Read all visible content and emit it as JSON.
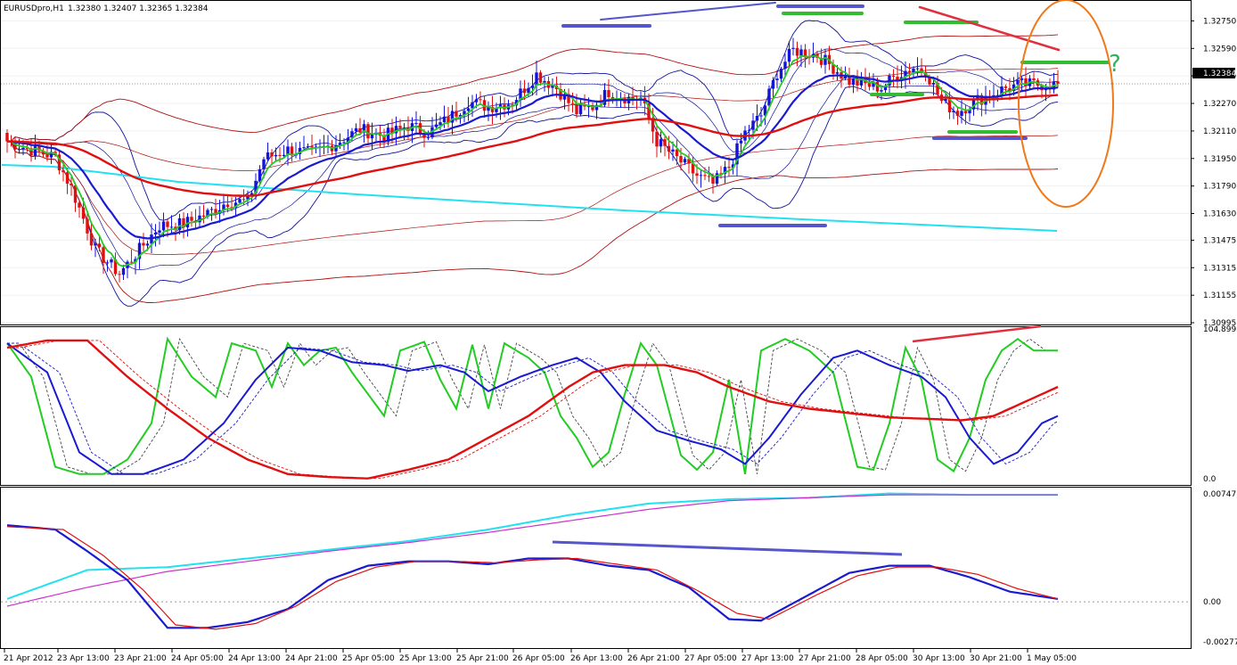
{
  "header": {
    "symbol": "EURUSDpro,H1",
    "ohlc": "1.32380 1.32407 1.32365 1.32384"
  },
  "current_price_label": "1.32384",
  "annotation_text": "?",
  "colors": {
    "bull": "#1414d8",
    "bear": "#e01010",
    "green": "#22cc22",
    "blue": "#1a1ad0",
    "red": "#e01010",
    "thin_red": "#b01010",
    "thin_blue": "#1010a0",
    "cyan": "#22e0f0",
    "magenta": "#cc33cc",
    "orange": "#f07818"
  },
  "chart_data": [
    {
      "type": "candlestick",
      "panel": "price",
      "y_ticks": [
        "1.32750",
        "1.32590",
        "1.32430",
        "1.32270",
        "1.32110",
        "1.31950",
        "1.31790",
        "1.31630",
        "1.31475",
        "1.31315",
        "1.31155",
        "1.30995"
      ],
      "ylim": [
        1.3099,
        1.3283
      ],
      "x_ticks": [
        "21 Apr 2012",
        "23 Apr 13:00",
        "23 Apr 21:00",
        "24 Apr 05:00",
        "24 Apr 13:00",
        "24 Apr 21:00",
        "25 Apr 05:00",
        "25 Apr 13:00",
        "25 Apr 21:00",
        "26 Apr 05:00",
        "26 Apr 13:00",
        "26 Apr 21:00",
        "27 Apr 05:00",
        "27 Apr 13:00",
        "27 Apr 21:00",
        "28 Apr 05:00",
        "30 Apr 13:00",
        "30 Apr 21:00",
        "1 May 05:00"
      ],
      "close_anchors": [
        [
          0,
          1.3205
        ],
        [
          6,
          1.32
        ],
        [
          12,
          1.3196
        ],
        [
          16,
          1.3178
        ],
        [
          22,
          1.3142
        ],
        [
          28,
          1.3128
        ],
        [
          33,
          1.3142
        ],
        [
          38,
          1.3156
        ],
        [
          44,
          1.3157
        ],
        [
          50,
          1.3163
        ],
        [
          55,
          1.317
        ],
        [
          60,
          1.317
        ],
        [
          64,
          1.3195
        ],
        [
          70,
          1.32
        ],
        [
          76,
          1.3198
        ],
        [
          82,
          1.3204
        ],
        [
          88,
          1.3212
        ],
        [
          94,
          1.3208
        ],
        [
          100,
          1.3214
        ],
        [
          105,
          1.321
        ],
        [
          110,
          1.3218
        ],
        [
          115,
          1.3228
        ],
        [
          120,
          1.3225
        ],
        [
          126,
          1.3228
        ],
        [
          132,
          1.3244
        ],
        [
          137,
          1.3236
        ],
        [
          142,
          1.3222
        ],
        [
          146,
          1.3225
        ],
        [
          150,
          1.3234
        ],
        [
          155,
          1.323
        ],
        [
          158,
          1.323
        ],
        [
          162,
          1.3205
        ],
        [
          167,
          1.3195
        ],
        [
          172,
          1.3185
        ],
        [
          176,
          1.318
        ],
        [
          180,
          1.319
        ],
        [
          184,
          1.321
        ],
        [
          188,
          1.322
        ],
        [
          192,
          1.3245
        ],
        [
          196,
          1.3258
        ],
        [
          202,
          1.3255
        ],
        [
          206,
          1.3248
        ],
        [
          210,
          1.324
        ],
        [
          214,
          1.3238
        ],
        [
          218,
          1.3236
        ],
        [
          222,
          1.3244
        ],
        [
          226,
          1.3248
        ],
        [
          229,
          1.3246
        ],
        [
          233,
          1.3228
        ],
        [
          237,
          1.3222
        ],
        [
          241,
          1.3228
        ],
        [
          245,
          1.3232
        ],
        [
          249,
          1.3236
        ],
        [
          253,
          1.3238
        ]
      ],
      "last_close": 1.32384
    },
    {
      "type": "line",
      "panel": "oscillator",
      "ylim": [
        0,
        104.8995
      ],
      "y_ticks": [
        "104.8995",
        "0.0"
      ],
      "series": [
        {
          "color": "green",
          "values": [
            [
              0,
              95
            ],
            [
              6,
              72
            ],
            [
              12,
              10
            ],
            [
              18,
              5
            ],
            [
              24,
              5
            ],
            [
              30,
              15
            ],
            [
              36,
              40
            ],
            [
              40,
              98
            ],
            [
              46,
              72
            ],
            [
              52,
              58
            ],
            [
              56,
              95
            ],
            [
              62,
              90
            ],
            [
              66,
              65
            ],
            [
              70,
              95
            ],
            [
              74,
              80
            ],
            [
              78,
              90
            ],
            [
              82,
              92
            ],
            [
              86,
              75
            ],
            [
              90,
              60
            ],
            [
              94,
              45
            ],
            [
              98,
              90
            ],
            [
              104,
              96
            ],
            [
              108,
              70
            ],
            [
              112,
              50
            ],
            [
              116,
              94
            ],
            [
              120,
              50
            ],
            [
              124,
              95
            ],
            [
              130,
              85
            ],
            [
              134,
              75
            ],
            [
              138,
              45
            ],
            [
              142,
              30
            ],
            [
              146,
              10
            ],
            [
              150,
              20
            ],
            [
              154,
              60
            ],
            [
              158,
              95
            ],
            [
              162,
              80
            ],
            [
              168,
              18
            ],
            [
              172,
              8
            ],
            [
              176,
              20
            ],
            [
              180,
              70
            ],
            [
              184,
              5
            ],
            [
              188,
              90
            ],
            [
              194,
              98
            ],
            [
              200,
              90
            ],
            [
              206,
              75
            ],
            [
              212,
              10
            ],
            [
              216,
              8
            ],
            [
              220,
              40
            ],
            [
              224,
              92
            ],
            [
              228,
              70
            ],
            [
              232,
              15
            ],
            [
              236,
              7
            ],
            [
              240,
              30
            ],
            [
              244,
              70
            ],
            [
              248,
              90
            ],
            [
              252,
              98
            ],
            [
              256,
              90
            ]
          ]
        },
        {
          "color": "blue",
          "values": [
            [
              0,
              95
            ],
            [
              10,
              75
            ],
            [
              18,
              20
            ],
            [
              26,
              5
            ],
            [
              34,
              5
            ],
            [
              44,
              15
            ],
            [
              54,
              40
            ],
            [
              62,
              70
            ],
            [
              70,
              92
            ],
            [
              78,
              90
            ],
            [
              86,
              82
            ],
            [
              94,
              80
            ],
            [
              100,
              76
            ],
            [
              108,
              80
            ],
            [
              114,
              75
            ],
            [
              120,
              62
            ],
            [
              128,
              72
            ],
            [
              136,
              80
            ],
            [
              142,
              85
            ],
            [
              148,
              75
            ],
            [
              154,
              55
            ],
            [
              162,
              35
            ],
            [
              170,
              28
            ],
            [
              178,
              22
            ],
            [
              184,
              12
            ],
            [
              190,
              30
            ],
            [
              198,
              60
            ],
            [
              206,
              85
            ],
            [
              212,
              90
            ],
            [
              220,
              80
            ],
            [
              228,
              72
            ],
            [
              234,
              58
            ],
            [
              240,
              30
            ],
            [
              246,
              12
            ],
            [
              252,
              20
            ],
            [
              258,
              40
            ],
            [
              262,
              45
            ]
          ]
        },
        {
          "color": "red",
          "values": [
            [
              0,
              92
            ],
            [
              10,
              97
            ],
            [
              20,
              97
            ],
            [
              30,
              72
            ],
            [
              40,
              50
            ],
            [
              50,
              30
            ],
            [
              60,
              15
            ],
            [
              70,
              5
            ],
            [
              80,
              3
            ],
            [
              90,
              2
            ],
            [
              100,
              8
            ],
            [
              110,
              15
            ],
            [
              120,
              30
            ],
            [
              130,
              45
            ],
            [
              140,
              65
            ],
            [
              146,
              75
            ],
            [
              154,
              80
            ],
            [
              164,
              80
            ],
            [
              172,
              75
            ],
            [
              180,
              65
            ],
            [
              190,
              55
            ],
            [
              200,
              50
            ],
            [
              210,
              47
            ],
            [
              220,
              44
            ],
            [
              230,
              43
            ],
            [
              238,
              42
            ],
            [
              246,
              45
            ],
            [
              254,
              55
            ],
            [
              262,
              65
            ]
          ]
        }
      ]
    },
    {
      "type": "line",
      "panel": "macd",
      "ylim": [
        -0.00277,
        0.00747
      ],
      "y_ticks": [
        "0.00747",
        "0.00",
        "-0.00277"
      ],
      "series": [
        {
          "color": "cyan",
          "values": [
            [
              0,
              0.0002
            ],
            [
              20,
              0.0022
            ],
            [
              40,
              0.0024
            ],
            [
              60,
              0.003
            ],
            [
              80,
              0.0036
            ],
            [
              100,
              0.0042
            ],
            [
              120,
              0.005
            ],
            [
              140,
              0.006
            ],
            [
              160,
              0.0068
            ],
            [
              180,
              0.0071
            ],
            [
              200,
              0.0072
            ],
            [
              220,
              0.0075
            ],
            [
              240,
              0.0074
            ],
            [
              262,
              0.0074
            ]
          ]
        },
        {
          "color": "magenta",
          "values": [
            [
              0,
              -0.0003
            ],
            [
              20,
              0.001
            ],
            [
              40,
              0.0021
            ],
            [
              60,
              0.0028
            ],
            [
              80,
              0.0035
            ],
            [
              100,
              0.0041
            ],
            [
              120,
              0.0048
            ],
            [
              140,
              0.0056
            ],
            [
              160,
              0.0064
            ],
            [
              180,
              0.007
            ],
            [
              200,
              0.0072
            ],
            [
              220,
              0.0074
            ],
            [
              240,
              0.0074
            ],
            [
              262,
              0.0074
            ]
          ]
        },
        {
          "color": "blue",
          "values": [
            [
              0,
              0.0053
            ],
            [
              12,
              0.005
            ],
            [
              20,
              0.0035
            ],
            [
              30,
              0.0015
            ],
            [
              40,
              -0.0018
            ],
            [
              50,
              -0.0018
            ],
            [
              60,
              -0.0014
            ],
            [
              70,
              -0.0005
            ],
            [
              80,
              0.0015
            ],
            [
              90,
              0.0025
            ],
            [
              100,
              0.0028
            ],
            [
              110,
              0.0028
            ],
            [
              120,
              0.0026
            ],
            [
              130,
              0.003
            ],
            [
              140,
              0.003
            ],
            [
              150,
              0.0025
            ],
            [
              160,
              0.0022
            ],
            [
              170,
              0.001
            ],
            [
              180,
              -0.0012
            ],
            [
              188,
              -0.0013
            ],
            [
              200,
              0.0005
            ],
            [
              210,
              0.002
            ],
            [
              220,
              0.0025
            ],
            [
              230,
              0.0025
            ],
            [
              240,
              0.0017
            ],
            [
              250,
              0.0007
            ],
            [
              262,
              0.0002
            ]
          ]
        },
        {
          "color": "red",
          "values": [
            [
              0,
              0.0052
            ],
            [
              14,
              0.005
            ],
            [
              24,
              0.0032
            ],
            [
              34,
              0.0008
            ],
            [
              42,
              -0.0016
            ],
            [
              52,
              -0.0019
            ],
            [
              62,
              -0.0015
            ],
            [
              72,
              -0.0003
            ],
            [
              82,
              0.0014
            ],
            [
              92,
              0.0024
            ],
            [
              102,
              0.0028
            ],
            [
              112,
              0.0028
            ],
            [
              122,
              0.0027
            ],
            [
              132,
              0.0029
            ],
            [
              142,
              0.003
            ],
            [
              152,
              0.0026
            ],
            [
              162,
              0.0022
            ],
            [
              172,
              0.0008
            ],
            [
              182,
              -0.0008
            ],
            [
              190,
              -0.0012
            ],
            [
              202,
              0.0005
            ],
            [
              212,
              0.0018
            ],
            [
              222,
              0.0024
            ],
            [
              232,
              0.0024
            ],
            [
              242,
              0.0019
            ],
            [
              252,
              0.0009
            ],
            [
              262,
              0.0002
            ]
          ]
        }
      ]
    }
  ]
}
